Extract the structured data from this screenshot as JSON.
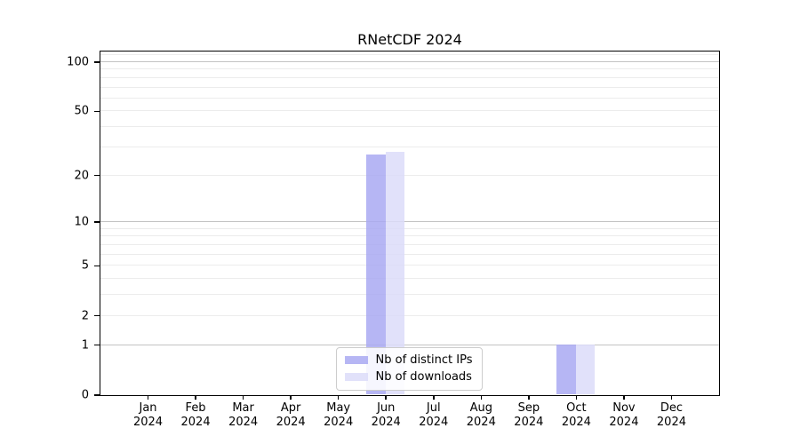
{
  "chart_data": {
    "type": "bar",
    "title": "RNetCDF 2024",
    "categories": [
      "Jan",
      "Feb",
      "Mar",
      "Apr",
      "May",
      "Jun",
      "Jul",
      "Aug",
      "Sep",
      "Oct",
      "Nov",
      "Dec"
    ],
    "year": "2024",
    "series": [
      {
        "name": "Nb of distinct IPs",
        "color": "#a9a9f2",
        "values": [
          0,
          0,
          0,
          0,
          0,
          27,
          0,
          0,
          0,
          1,
          0,
          0
        ]
      },
      {
        "name": "Nb of downloads",
        "color": "#dcdcf9",
        "values": [
          0,
          0,
          0,
          0,
          0,
          28,
          0,
          0,
          0,
          1,
          0,
          0
        ]
      }
    ],
    "y_axis": {
      "scale": "log1p",
      "ticks": [
        0,
        1,
        2,
        5,
        10,
        20,
        50,
        100
      ],
      "major_gridlines": [
        1,
        10,
        100
      ],
      "minor_gridlines": [
        2,
        3,
        4,
        5,
        6,
        7,
        8,
        9,
        20,
        30,
        40,
        50,
        60,
        70,
        80,
        90,
        110
      ],
      "top_value": 116,
      "ylim": [
        0,
        116
      ]
    },
    "xlabel": "",
    "ylabel": "",
    "grid": true,
    "legend": {
      "position": "bottom-center",
      "entries": [
        "Nb of distinct IPs",
        "Nb of downloads"
      ]
    },
    "colors": {
      "major_grid": "#c3c3c3",
      "minor_grid": "#ececec",
      "axis": "#000000",
      "background": "#ffffff",
      "legend_border": "#cccccc"
    }
  }
}
